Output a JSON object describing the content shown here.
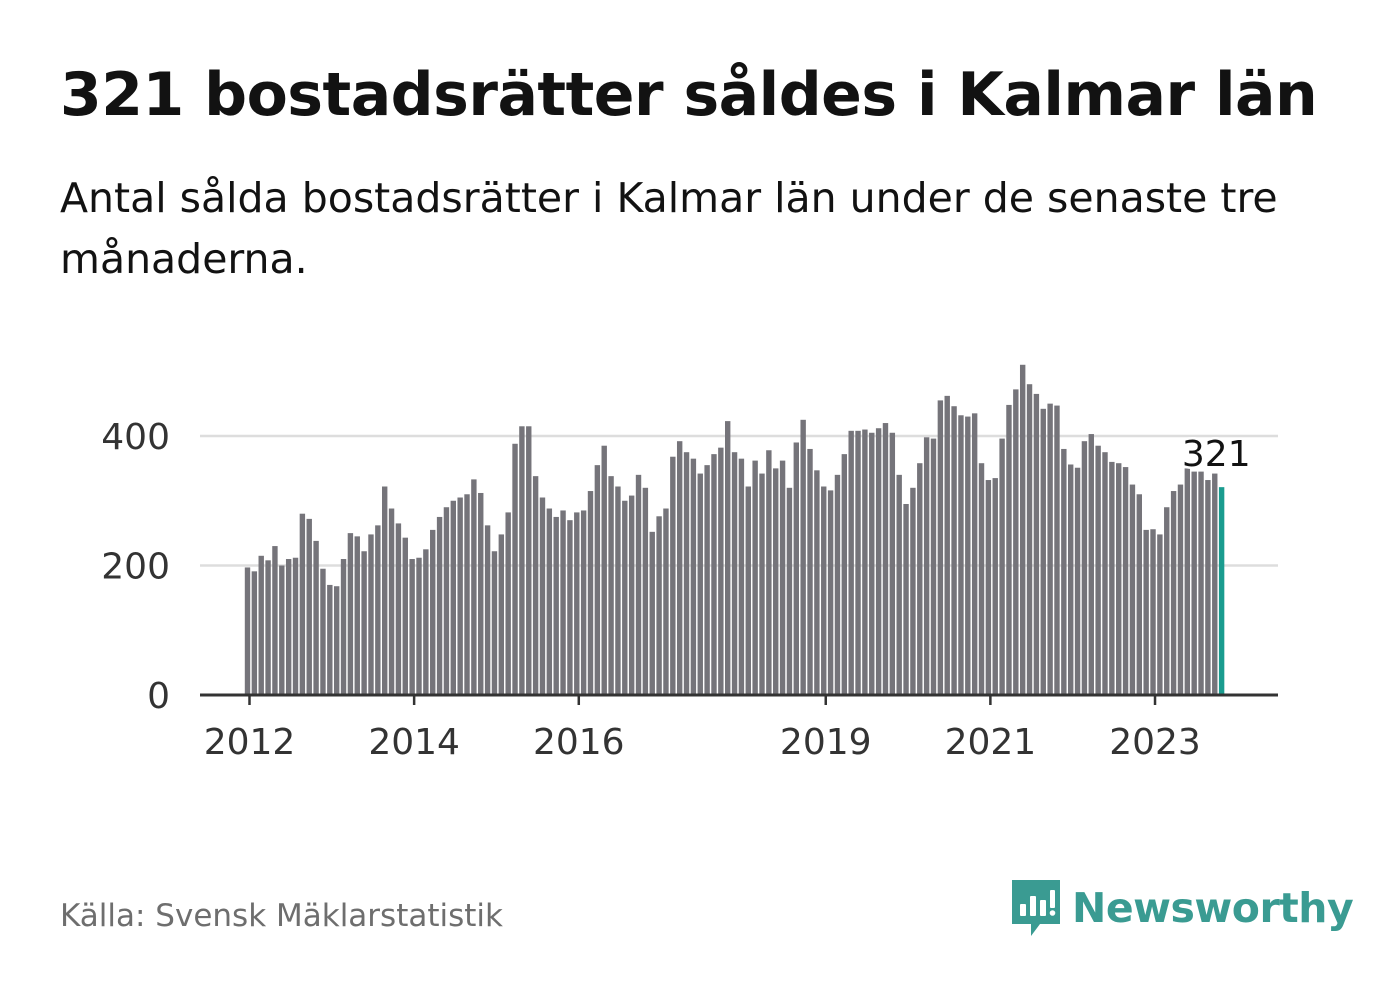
{
  "title": "321 bostadsrätter såldes i Kalmar län",
  "subtitle": "Antal sålda bostadsrätter i Kalmar län under de senaste tre månaderna.",
  "source": "Källa: Svensk Mäklarstatistik",
  "brand": "Newsworthy",
  "colors": {
    "bar": "#75747a",
    "highlight": "#1a9c8f",
    "grid": "#dddddd",
    "axis": "#333333",
    "text": "#121212",
    "brand": "#3a9b92"
  },
  "chart_data": {
    "type": "bar",
    "title": "321 bostadsrätter såldes i Kalmar län",
    "xlabel": "",
    "ylabel": "",
    "ylim": [
      0,
      520
    ],
    "yticks": [
      0,
      200,
      400
    ],
    "xticks": [
      "2012",
      "2014",
      "2016",
      "2019",
      "2021",
      "2023"
    ],
    "grid": true,
    "x_start": "2012-01",
    "series": [
      {
        "name": "Sålda bostadsrätter",
        "values": [
          197,
          191,
          215,
          208,
          230,
          200,
          210,
          212,
          280,
          272,
          238,
          195,
          170,
          168,
          210,
          250,
          245,
          222,
          248,
          262,
          322,
          288,
          265,
          243,
          210,
          212,
          225,
          255,
          275,
          290,
          300,
          305,
          310,
          333,
          312,
          262,
          222,
          248,
          282,
          388,
          415,
          415,
          338,
          305,
          288,
          275,
          285,
          270,
          282,
          285,
          315,
          355,
          385,
          338,
          322,
          300,
          308,
          340,
          320,
          252,
          276,
          288,
          368,
          392,
          375,
          365,
          342,
          355,
          372,
          382,
          423,
          375,
          365,
          322,
          362,
          342,
          378,
          350,
          362,
          320,
          390,
          425,
          380,
          347,
          322,
          316,
          340,
          372,
          408,
          408,
          410,
          405,
          412,
          420,
          405,
          340,
          295,
          320,
          358,
          398,
          396,
          455,
          462,
          446,
          432,
          430,
          435,
          358,
          332,
          335,
          396,
          448,
          472,
          510,
          480,
          465,
          442,
          450,
          447,
          380,
          356,
          351,
          392,
          403,
          385,
          375,
          360,
          358,
          352,
          325,
          310,
          255,
          256,
          248,
          290,
          315,
          325,
          350,
          345,
          345,
          332,
          342,
          321
        ]
      }
    ],
    "highlight_label": "321"
  }
}
